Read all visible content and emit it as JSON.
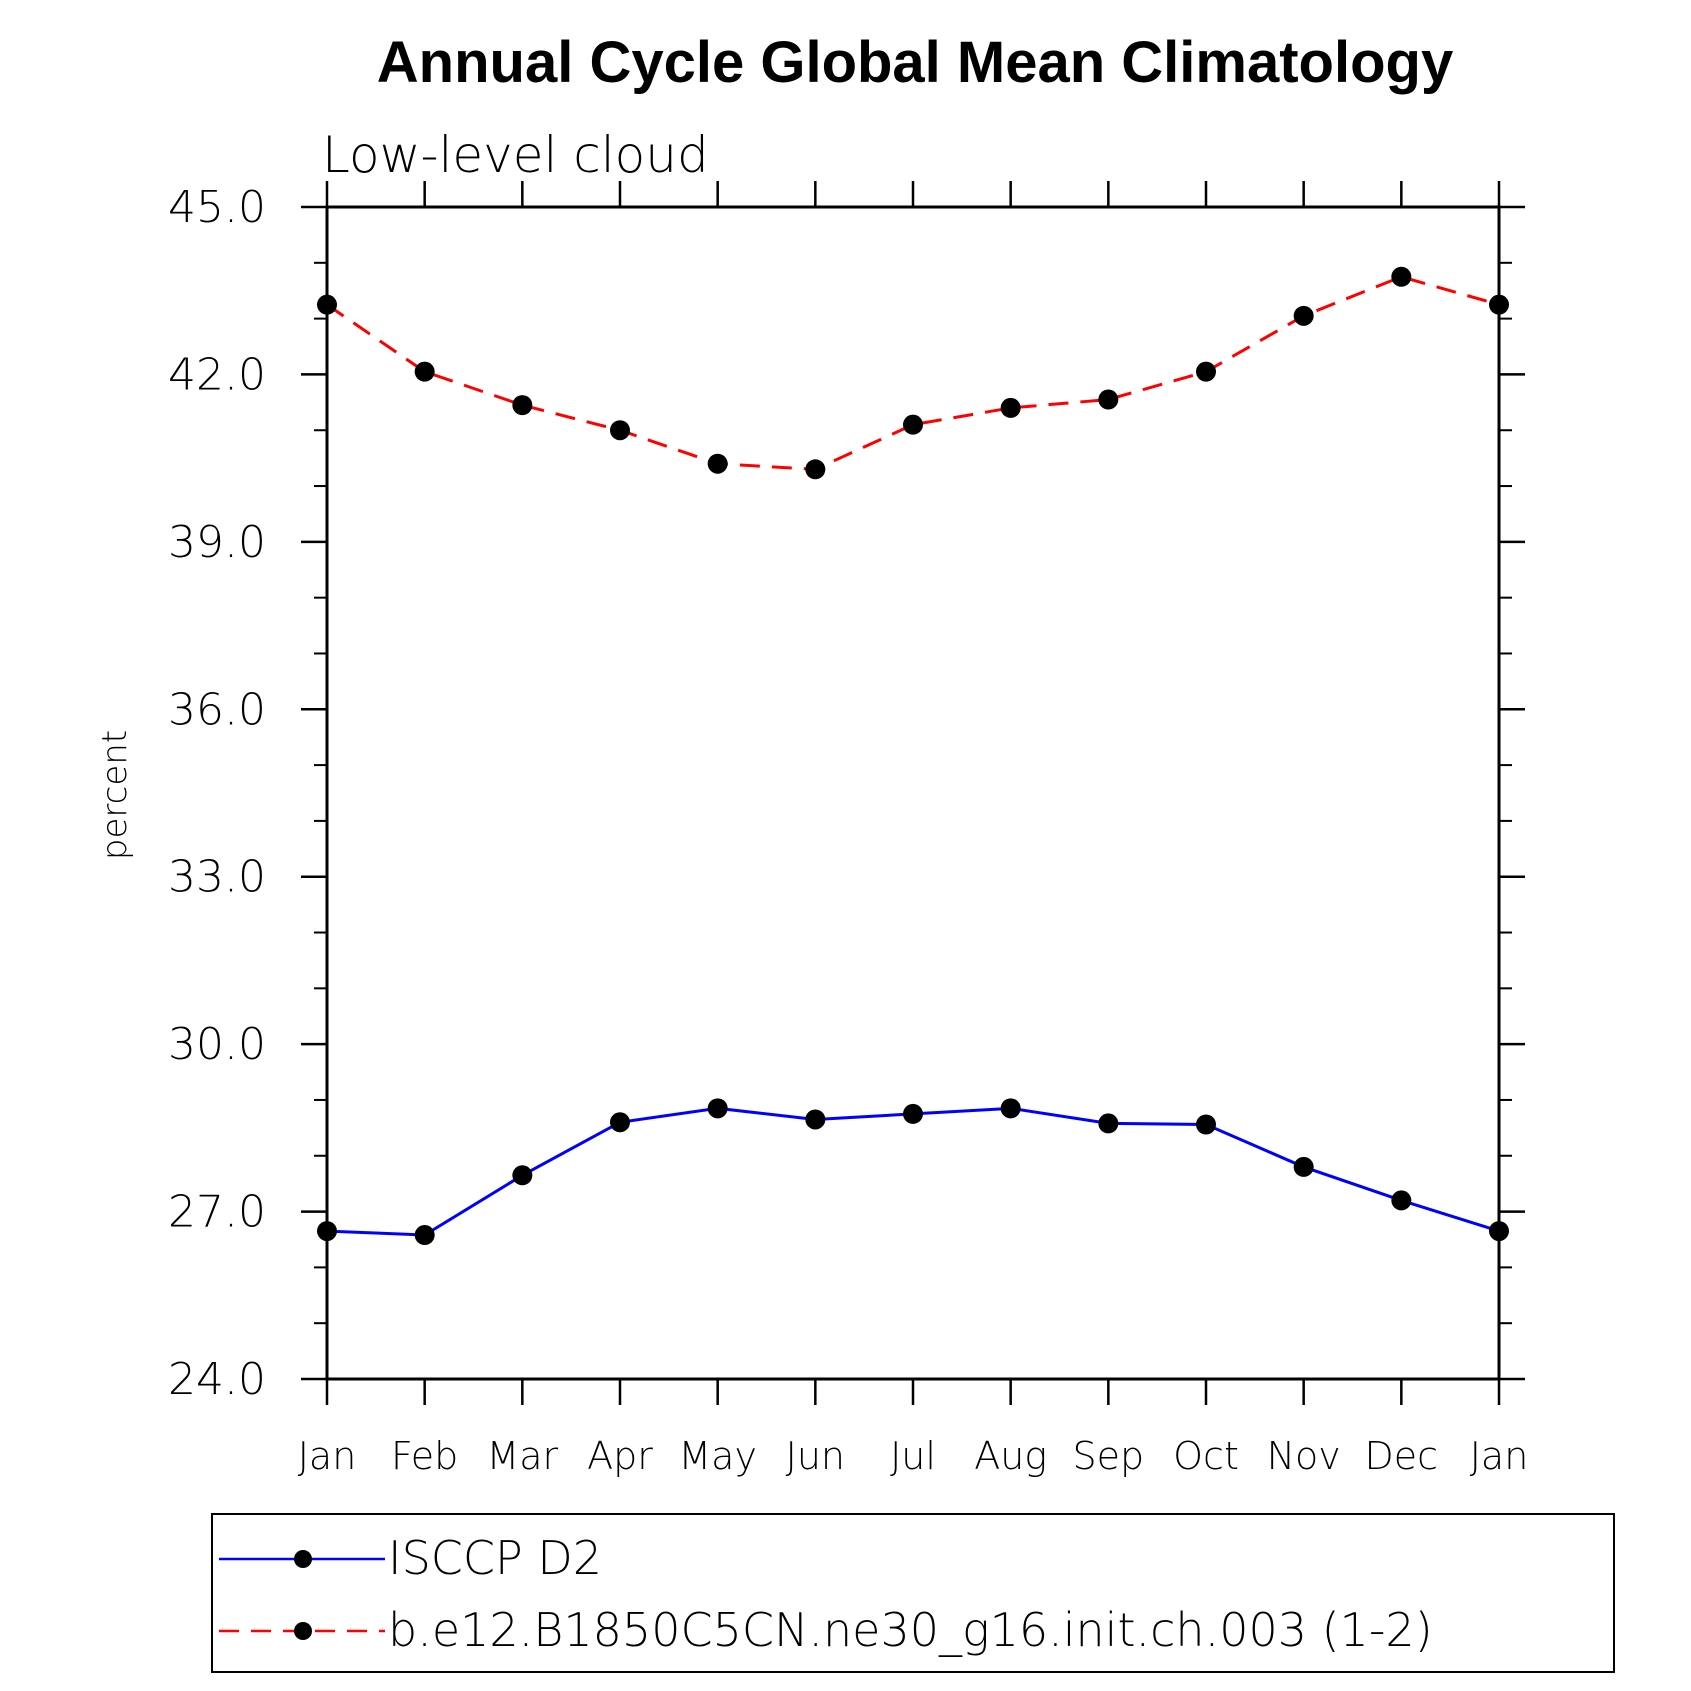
{
  "chart_data": {
    "type": "line",
    "title": "Annual Cycle Global Mean Climatology",
    "subtitle": "Low-level cloud",
    "ylabel": "percent",
    "xlabel": "",
    "categories": [
      "Jan",
      "Feb",
      "Mar",
      "Apr",
      "May",
      "Jun",
      "Jul",
      "Aug",
      "Sep",
      "Oct",
      "Nov",
      "Dec",
      "Jan"
    ],
    "ylim": [
      24.0,
      45.0
    ],
    "yticks": [
      "24.0",
      "27.0",
      "30.0",
      "33.0",
      "36.0",
      "39.0",
      "42.0",
      "45.0"
    ],
    "grid": false,
    "legend_position": "bottom",
    "series": [
      {
        "name": "ISCCP D2",
        "color": "#0000ff",
        "style": "solid",
        "marker": "dot",
        "values": [
          26.65,
          26.58,
          27.65,
          28.6,
          28.85,
          28.65,
          28.75,
          28.85,
          28.58,
          28.56,
          27.8,
          27.2,
          26.65
        ]
      },
      {
        "name": "b.e12.B1850C5CN.ne30_g16.init.ch.003 (1-2)",
        "color": "#ff0000",
        "style": "dashed",
        "marker": "dot",
        "values": [
          43.25,
          42.05,
          41.45,
          41.0,
          40.4,
          40.3,
          41.1,
          41.4,
          41.55,
          42.05,
          43.05,
          43.75,
          43.25
        ]
      }
    ]
  }
}
